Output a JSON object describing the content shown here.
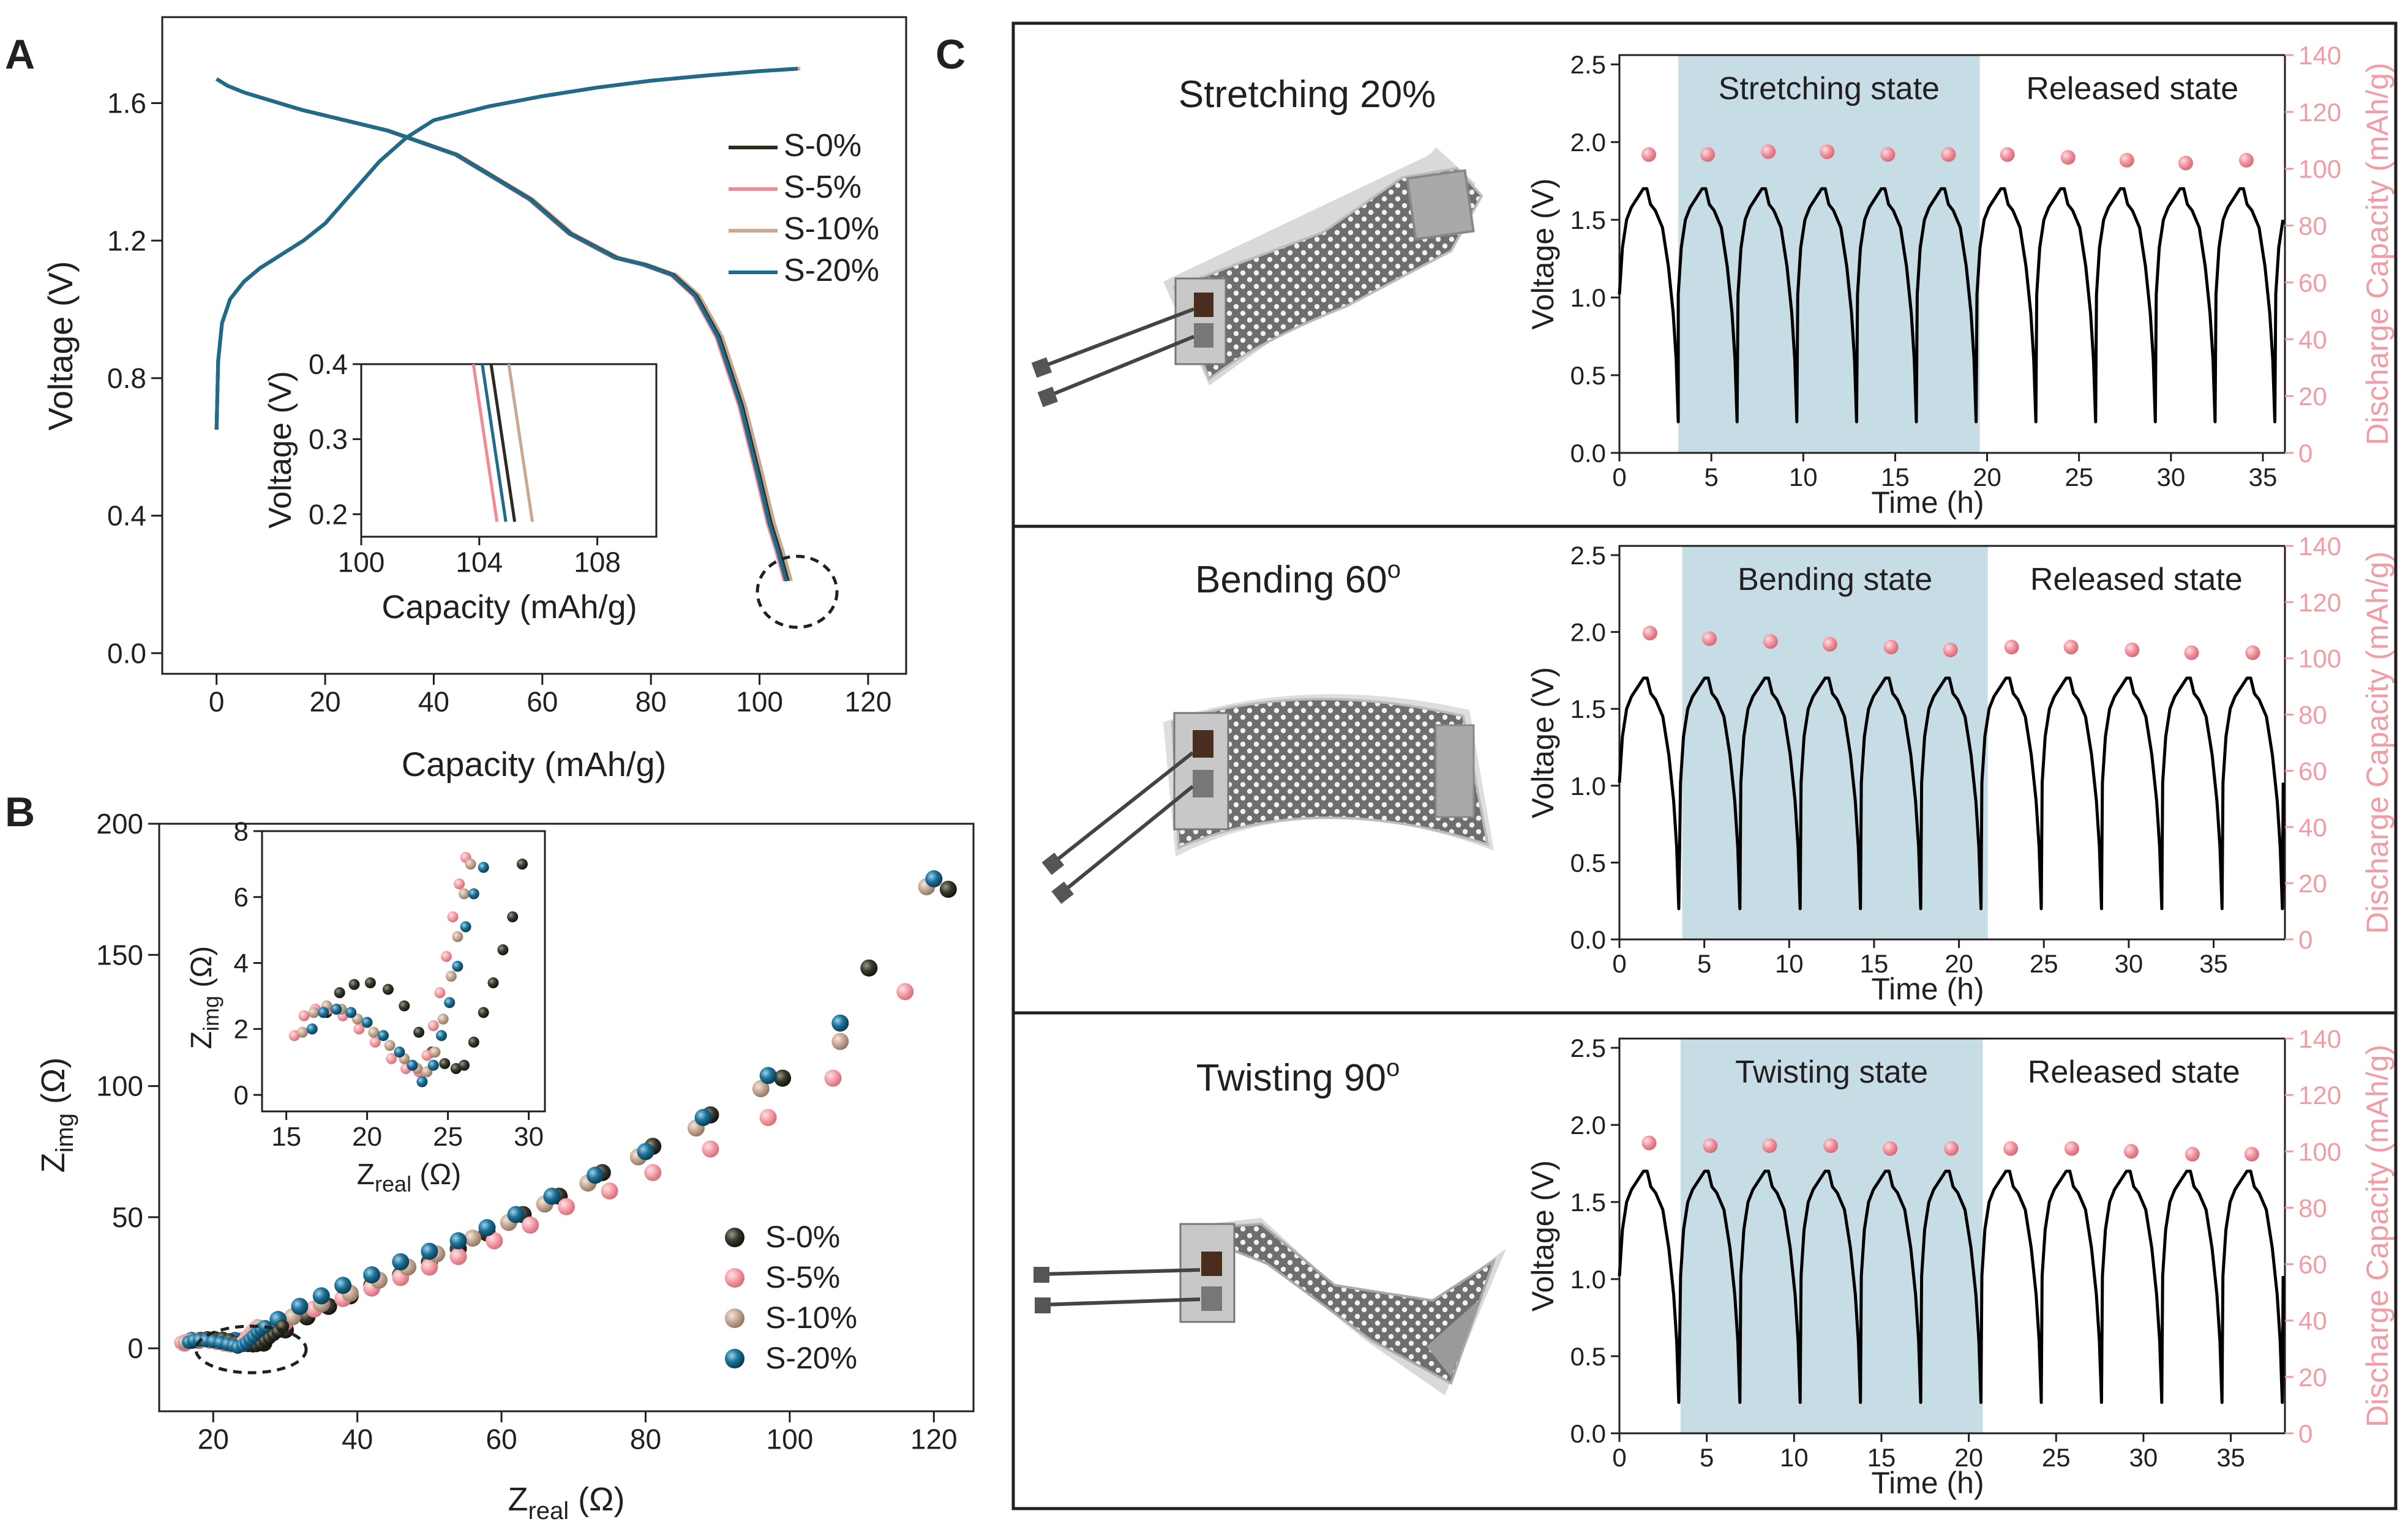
{
  "panel_letters": {
    "a": "A",
    "b": "B",
    "c": "C"
  },
  "colors": {
    "s0": "#2b2b22",
    "s5": "#f08a94",
    "s10": "#c8a890",
    "s20": "#1f6b8c",
    "s0_dot": "#3a3a30",
    "s5_dot": "#f4a4ac",
    "s10_dot": "#c9ad98",
    "s20_dot": "#1d7399",
    "shade": "#c7dde6",
    "capacity_axis": "#f29ca4",
    "capacity_dot": "#ef8d98",
    "axis": "#231f20",
    "voltage_line": "#000000"
  },
  "icons": {
    "stretch_photo": "stretched-battery-photo",
    "bend_photo": "bent-battery-photo",
    "twist_photo": "twisted-battery-photo",
    "ellipse_a": "dashed-ellipse",
    "ellipse_b": "dashed-ellipse"
  },
  "chart_data": [
    {
      "id": "A",
      "type": "line",
      "xlabel": "Capacity (mAh/g)",
      "ylabel": "Voltage (V)",
      "xlim": [
        -10,
        127
      ],
      "ylim": [
        -0.06,
        1.85
      ],
      "xticks": [
        0,
        20,
        40,
        60,
        80,
        100,
        120
      ],
      "yticks": [
        0.0,
        0.4,
        0.8,
        1.2,
        1.6
      ],
      "ytick_labels": [
        "0.0",
        "0.4",
        "0.8",
        "1.2",
        "1.6"
      ],
      "legend": [
        "S-0%",
        "S-5%",
        "S-10%",
        "S-20%"
      ],
      "series": [
        {
          "name": "S-0%",
          "charge_end": 107.0,
          "discharge_end": 105.2
        },
        {
          "name": "S-5%",
          "charge_end": 106.8,
          "discharge_end": 104.6
        },
        {
          "name": "S-10%",
          "charge_end": 107.5,
          "discharge_end": 105.8
        },
        {
          "name": "S-20%",
          "charge_end": 106.9,
          "discharge_end": 104.9
        }
      ],
      "charge_profile": {
        "x": [
          0,
          0.3,
          1,
          2.5,
          5,
          8,
          10,
          12,
          16,
          20,
          25,
          30,
          35,
          40,
          50,
          60,
          70,
          80,
          90,
          100,
          1.0
        ],
        "y": [
          0.65,
          0.85,
          0.96,
          1.03,
          1.08,
          1.12,
          1.14,
          1.16,
          1.2,
          1.25,
          1.34,
          1.43,
          1.5,
          1.55,
          1.59,
          1.62,
          1.645,
          1.665,
          1.68,
          1.693,
          1.7
        ]
      },
      "discharge_profile": {
        "x": [
          0,
          0.02,
          0.05,
          0.15,
          0.3,
          0.42,
          0.55,
          0.62,
          0.7,
          0.75,
          0.8,
          0.84,
          0.88,
          0.92,
          0.95,
          0.97,
          0.985,
          1.0
        ],
        "y": [
          1.67,
          1.65,
          1.63,
          1.58,
          1.52,
          1.45,
          1.32,
          1.22,
          1.15,
          1.13,
          1.1,
          1.04,
          0.92,
          0.72,
          0.52,
          0.38,
          0.3,
          0.21
        ]
      },
      "inset": {
        "xlabel": "Capacity (mAh/g)",
        "ylabel": "Voltage (V)",
        "xlim": [
          100,
          110
        ],
        "ylim": [
          0.17,
          0.4
        ],
        "xticks": [
          100,
          104,
          108
        ],
        "yticks": [
          0.2,
          0.3,
          0.4
        ],
        "ytick_labels": [
          "0.2",
          "0.3",
          "0.4"
        ],
        "lines": [
          {
            "name": "S-5%",
            "x0": 103.8,
            "x1": 104.6
          },
          {
            "name": "S-20%",
            "x0": 104.1,
            "x1": 104.9
          },
          {
            "name": "S-0%",
            "x0": 104.4,
            "x1": 105.2
          },
          {
            "name": "S-10%",
            "x0": 105.0,
            "x1": 105.8
          }
        ]
      }
    },
    {
      "id": "B",
      "type": "scatter",
      "xlabel_main": "Z",
      "xlabel_sub": "real",
      "xlabel_unit": " (Ω)",
      "ylabel_main": "Z",
      "ylabel_sub": "img",
      "ylabel_unit": " (Ω)",
      "xlim": [
        12.5,
        125.5
      ],
      "ylim": [
        -24,
        200
      ],
      "xticks": [
        20,
        40,
        60,
        80,
        100,
        120
      ],
      "yticks": [
        0,
        50,
        100,
        150,
        200
      ],
      "legend": [
        "S-0%",
        "S-5%",
        "S-10%",
        "S-20%"
      ],
      "series": [
        {
          "name": "S-0%",
          "x": [
            27,
            30,
            33,
            36,
            39,
            42,
            46,
            50,
            54,
            58,
            63,
            68,
            74,
            81,
            89,
            99,
            111,
            122
          ],
          "y": [
            2,
            7,
            12,
            16,
            20,
            24,
            28,
            33,
            38,
            44,
            51,
            58,
            67,
            77,
            89,
            103,
            145,
            175
          ]
        },
        {
          "name": "S-5%",
          "x": [
            16,
            22,
            26,
            30,
            34,
            38,
            42,
            46,
            50,
            54,
            59,
            64,
            69,
            75,
            81,
            89,
            97,
            106,
            116
          ],
          "y": [
            2,
            2,
            5,
            10,
            15,
            19,
            23,
            27,
            31,
            35,
            41,
            47,
            54,
            60,
            67,
            76,
            88,
            103,
            136
          ]
        },
        {
          "name": "S-10%",
          "x": [
            18,
            24,
            27,
            31,
            35,
            39,
            43,
            47,
            51,
            56,
            61,
            66,
            72,
            79,
            87,
            96,
            107,
            119
          ],
          "y": [
            3,
            3,
            7,
            12,
            17,
            21,
            26,
            31,
            36,
            42,
            48,
            55,
            63,
            73,
            84,
            99,
            117,
            176
          ]
        },
        {
          "name": "S-20%",
          "x": [
            17,
            23,
            26,
            29,
            32,
            35,
            38,
            42,
            46,
            50,
            54,
            58,
            62,
            67,
            73,
            80,
            88,
            97,
            107,
            120
          ],
          "y": [
            3,
            3,
            6,
            11,
            16,
            20,
            24,
            28,
            33,
            37,
            41,
            46,
            51,
            58,
            66,
            75,
            88,
            104,
            124,
            179
          ]
        }
      ],
      "inset": {
        "xlabel_main": "Z",
        "xlabel_sub": "real",
        "xlabel_unit": " (Ω)",
        "ylabel_main": "Z",
        "ylabel_sub": "img",
        "ylabel_unit": " (Ω)",
        "xlim": [
          13.5,
          31
        ],
        "ylim": [
          -0.5,
          8
        ],
        "xticks": [
          15,
          20,
          25,
          30
        ],
        "yticks": [
          0,
          2,
          4,
          6,
          8
        ],
        "series": [
          {
            "name": "S-0%",
            "x": [
              17.5,
              18.3,
              19.2,
              20.2,
              21.3,
              22.3,
              23.2,
              24.0,
              24.8,
              25.5,
              26.0,
              26.6,
              27.2,
              27.8,
              28.4,
              29.0,
              29.6
            ],
            "y": [
              2.5,
              3.1,
              3.35,
              3.4,
              3.2,
              2.7,
              1.9,
              1.3,
              0.95,
              0.8,
              0.9,
              1.6,
              2.5,
              3.4,
              4.4,
              5.4,
              7.0
            ]
          },
          {
            "name": "S-5%",
            "x": [
              15.5,
              16.1,
              16.8,
              17.6,
              18.5,
              19.5,
              20.5,
              21.5,
              22.4,
              23.2,
              23.7,
              24.1,
              24.5,
              24.9,
              25.3,
              25.7,
              26.1
            ],
            "y": [
              1.8,
              2.4,
              2.6,
              2.6,
              2.4,
              2.0,
              1.6,
              1.1,
              0.8,
              0.7,
              1.2,
              2.1,
              3.1,
              4.2,
              5.4,
              6.4,
              7.2
            ]
          },
          {
            "name": "S-10%",
            "x": [
              16.0,
              16.7,
              17.5,
              18.4,
              19.4,
              20.4,
              21.4,
              22.3,
              23.1,
              23.7,
              24.2,
              24.7,
              25.2,
              25.6,
              26.0,
              26.4
            ],
            "y": [
              1.9,
              2.5,
              2.7,
              2.6,
              2.3,
              1.9,
              1.5,
              1.1,
              0.8,
              0.7,
              1.3,
              2.3,
              3.6,
              4.8,
              6.1,
              7.0
            ]
          },
          {
            "name": "S-20%",
            "x": [
              16.6,
              17.3,
              18.1,
              19.0,
              20.0,
              21.0,
              22.0,
              22.8,
              23.4,
              24.1,
              24.6,
              25.1,
              25.6,
              26.1,
              26.6,
              27.2
            ],
            "y": [
              2.0,
              2.5,
              2.6,
              2.5,
              2.2,
              1.8,
              1.3,
              0.9,
              0.4,
              0.9,
              1.8,
              2.8,
              3.9,
              5.1,
              6.1,
              6.9
            ]
          }
        ]
      }
    },
    {
      "id": "C-stretch",
      "type": "line",
      "label": "Stretching 20%",
      "state_label": "Stretching state",
      "released_label": "Released state",
      "xlabel": "Time (h)",
      "ylabel_left": "Voltage (V)",
      "ylabel_right": "Discharge Capacity (mAh/g)",
      "xlim": [
        0,
        36.2
      ],
      "ylim": [
        0,
        2.56
      ],
      "y2lim": [
        0,
        140
      ],
      "xticks": [
        0,
        5,
        10,
        15,
        20,
        25,
        30,
        35
      ],
      "yticks": [
        0.0,
        0.5,
        1.0,
        1.5,
        2.0,
        2.5
      ],
      "ytick_labels": [
        "0.0",
        "0.5",
        "1.0",
        "1.5",
        "2.0",
        "2.5"
      ],
      "y2ticks": [
        0,
        20,
        40,
        60,
        80,
        100,
        120,
        140
      ],
      "shade_range": [
        3.2,
        19.6
      ],
      "cycle_period": 3.25,
      "cycle_starts": [
        0.0,
        3.2,
        6.45,
        9.7,
        12.95,
        16.2,
        19.45,
        22.7,
        25.95,
        29.2,
        32.45,
        35.7
      ],
      "capacity_points": {
        "x": [
          1.6,
          4.8,
          8.1,
          11.3,
          14.6,
          17.9,
          21.1,
          24.4,
          27.6,
          30.8,
          34.1
        ],
        "y": [
          105,
          105,
          106,
          106,
          105,
          105,
          105,
          104,
          103,
          102,
          103
        ]
      }
    },
    {
      "id": "C-bend",
      "type": "line",
      "label": "Bending 60",
      "label_sup": "o",
      "state_label": "Bending state",
      "released_label": "Released state",
      "xlabel": "Time (h)",
      "ylabel_left": "Voltage (V)",
      "ylabel_right": "Discharge Capacity (mAh/g)",
      "xlim": [
        0,
        39.2
      ],
      "ylim": [
        0,
        2.56
      ],
      "y2lim": [
        0,
        140
      ],
      "xticks": [
        0,
        5,
        10,
        15,
        20,
        25,
        30,
        35
      ],
      "yticks": [
        0.0,
        0.5,
        1.0,
        1.5,
        2.0,
        2.5
      ],
      "ytick_labels": [
        "0.0",
        "0.5",
        "1.0",
        "1.5",
        "2.0",
        "2.5"
      ],
      "y2ticks": [
        0,
        20,
        40,
        60,
        80,
        100,
        120,
        140
      ],
      "shade_range": [
        3.7,
        21.7
      ],
      "cycle_period": 3.55,
      "cycle_starts": [
        0.0,
        3.6,
        7.15,
        10.7,
        14.25,
        17.8,
        21.35,
        24.9,
        28.45,
        32.0,
        35.55,
        39.1
      ],
      "capacity_points": {
        "x": [
          1.8,
          5.3,
          8.9,
          12.4,
          16.0,
          19.5,
          23.1,
          26.6,
          30.2,
          33.7,
          37.3
        ],
        "y": [
          109,
          107,
          106,
          105,
          104,
          103,
          104,
          104,
          103,
          102,
          102
        ]
      }
    },
    {
      "id": "C-twist",
      "type": "line",
      "label": "Twisting 90",
      "label_sup": "o",
      "state_label": "Twisting state",
      "released_label": "Released state",
      "xlabel": "Time (h)",
      "ylabel_left": "Voltage (V)",
      "ylabel_right": "Discharge Capacity (mAh/g)",
      "xlim": [
        0,
        38.1
      ],
      "ylim": [
        0,
        2.56
      ],
      "y2lim": [
        0,
        140
      ],
      "xticks": [
        0,
        5,
        10,
        15,
        20,
        25,
        30,
        35
      ],
      "yticks": [
        0.0,
        0.5,
        1.0,
        1.5,
        2.0,
        2.5
      ],
      "ytick_labels": [
        "0.0",
        "0.5",
        "1.0",
        "1.5",
        "2.0",
        "2.5"
      ],
      "y2ticks": [
        0,
        20,
        40,
        60,
        80,
        100,
        120,
        140
      ],
      "shade_range": [
        3.5,
        20.8
      ],
      "cycle_period": 3.45,
      "cycle_starts": [
        0.0,
        3.5,
        6.95,
        10.4,
        13.85,
        17.3,
        20.75,
        24.2,
        27.65,
        31.1,
        34.55,
        38.0
      ],
      "capacity_points": {
        "x": [
          1.7,
          5.2,
          8.6,
          12.1,
          15.5,
          19.0,
          22.4,
          25.9,
          29.3,
          32.8,
          36.2
        ],
        "y": [
          103,
          102,
          102,
          102,
          101,
          101,
          101,
          101,
          100,
          99,
          99
        ]
      }
    }
  ]
}
